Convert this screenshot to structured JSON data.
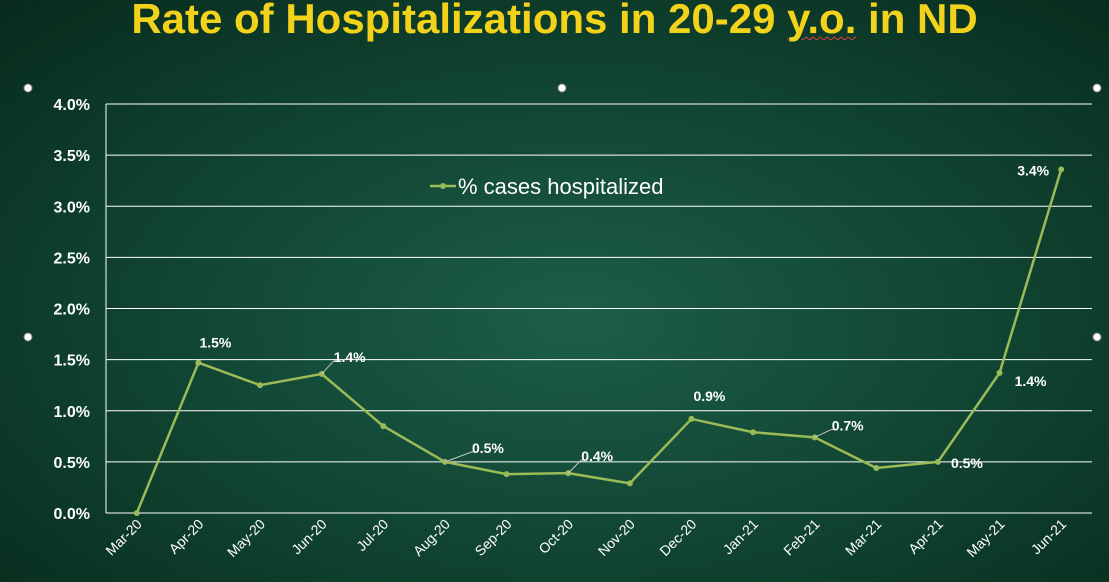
{
  "title_parts": {
    "before": "Rate of Hospitalizations in 20-29 ",
    "marked": "y.o.",
    "after": " in ND"
  },
  "colors": {
    "line": "#9bbb59",
    "title": "#f2d21b",
    "grid": "#ffffff",
    "text": "#ffffff"
  },
  "chart_data": {
    "type": "line",
    "title": "Rate of Hospitalizations in 20-29 y.o. in ND",
    "categories": [
      "Mar-20",
      "Apr-20",
      "May-20",
      "Jun-20",
      "Jul-20",
      "Aug-20",
      "Sep-20",
      "Oct-20",
      "Nov-20",
      "Dec-20",
      "Jan-21",
      "Feb-21",
      "Mar-21",
      "Apr-21",
      "May-21",
      "Jun-21"
    ],
    "series": [
      {
        "name": "% cases hospitalized",
        "values": [
          0.0,
          1.47,
          1.25,
          1.36,
          0.85,
          0.5,
          0.38,
          0.39,
          0.29,
          0.92,
          0.79,
          0.74,
          0.44,
          0.5,
          1.37,
          3.36
        ]
      }
    ],
    "data_labels": [
      {
        "index": 1,
        "text": "1.5%"
      },
      {
        "index": 3,
        "text": "1.4%"
      },
      {
        "index": 5,
        "text": "0.5%"
      },
      {
        "index": 7,
        "text": "0.4%"
      },
      {
        "index": 9,
        "text": "0.9%"
      },
      {
        "index": 11,
        "text": "0.7%"
      },
      {
        "index": 13,
        "text": "0.5%"
      },
      {
        "index": 14,
        "text": "1.4%"
      },
      {
        "index": 15,
        "text": "3.4%"
      }
    ],
    "y_ticks": [
      "0.0%",
      "0.5%",
      "1.0%",
      "1.5%",
      "2.0%",
      "2.5%",
      "3.0%",
      "3.5%",
      "4.0%"
    ],
    "ylim": [
      0,
      4.0
    ],
    "xlabel": "",
    "ylabel": "",
    "grid": true,
    "legend_position": "top-center"
  }
}
